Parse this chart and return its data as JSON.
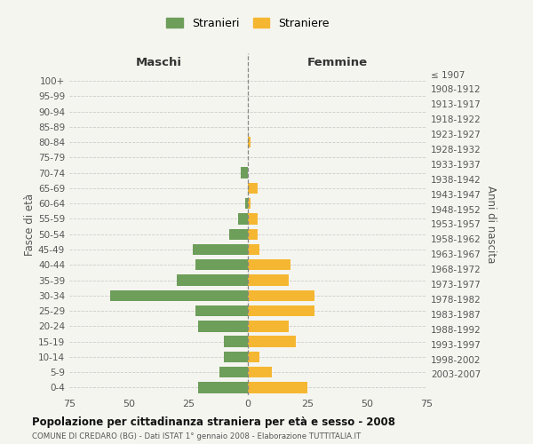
{
  "age_groups": [
    "100+",
    "95-99",
    "90-94",
    "85-89",
    "80-84",
    "75-79",
    "70-74",
    "65-69",
    "60-64",
    "55-59",
    "50-54",
    "45-49",
    "40-44",
    "35-39",
    "30-34",
    "25-29",
    "20-24",
    "15-19",
    "10-14",
    "5-9",
    "0-4"
  ],
  "birth_years": [
    "≤ 1907",
    "1908-1912",
    "1913-1917",
    "1918-1922",
    "1923-1927",
    "1928-1932",
    "1933-1937",
    "1938-1942",
    "1943-1947",
    "1948-1952",
    "1953-1957",
    "1958-1962",
    "1963-1967",
    "1968-1972",
    "1973-1977",
    "1978-1982",
    "1983-1987",
    "1988-1992",
    "1993-1997",
    "1998-2002",
    "2003-2007"
  ],
  "males": [
    0,
    0,
    0,
    0,
    0,
    0,
    3,
    0,
    1,
    4,
    8,
    23,
    22,
    30,
    58,
    22,
    21,
    10,
    10,
    12,
    21
  ],
  "females": [
    0,
    0,
    0,
    0,
    1,
    0,
    0,
    4,
    1,
    4,
    4,
    5,
    18,
    17,
    28,
    28,
    17,
    20,
    5,
    10,
    25
  ],
  "male_color": "#6d9e5a",
  "female_color": "#f5b731",
  "background_color": "#f5f5f0",
  "grid_color": "#cccccc",
  "title": "Popolazione per cittadinanza straniera per età e sesso - 2008",
  "subtitle": "COMUNE DI CREDARO (BG) - Dati ISTAT 1° gennaio 2008 - Elaborazione TUTTITALIA.IT",
  "xlabel_left": "Maschi",
  "xlabel_right": "Femmine",
  "ylabel_left": "Fasce di età",
  "ylabel_right": "Anni di nascita",
  "legend_male": "Stranieri",
  "legend_female": "Straniere",
  "xlim": 75
}
